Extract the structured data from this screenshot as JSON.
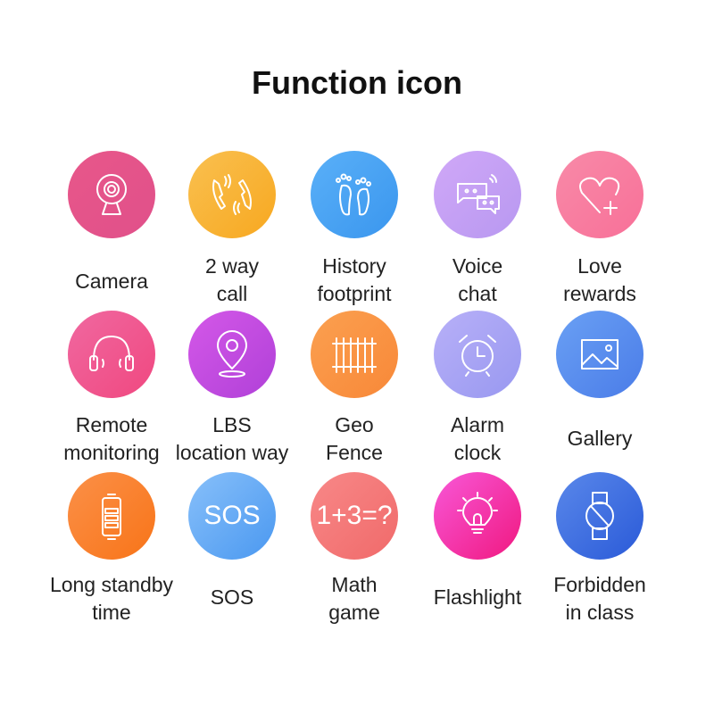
{
  "title": "Function icon",
  "functions": [
    {
      "lines": [
        "Camera"
      ],
      "icon": "webcam-icon",
      "color": "#e8578a",
      "color2": "#e0508a"
    },
    {
      "lines": [
        "2 way",
        "call"
      ],
      "icon": "phone-call-icon",
      "color": "#f9c050",
      "color2": "#f8a820"
    },
    {
      "lines": [
        "History",
        "footprint"
      ],
      "icon": "footprints-icon",
      "color": "#5ab0f8",
      "color2": "#3a96ee"
    },
    {
      "lines": [
        "Voice",
        "chat"
      ],
      "icon": "chat-bubbles-icon",
      "color": "#d0a8f8",
      "color2": "#b898f0"
    },
    {
      "lines": [
        "Love",
        "rewards"
      ],
      "icon": "heart-plus-icon",
      "color": "#f88aa8",
      "color2": "#f87098"
    },
    {
      "lines": [
        "Remote",
        "monitoring"
      ],
      "icon": "headphones-icon",
      "color": "#f068a0",
      "color2": "#f04880"
    },
    {
      "lines": [
        "LBS",
        "location way"
      ],
      "icon": "location-pin-icon",
      "color": "#d458e8",
      "color2": "#b040d8"
    },
    {
      "lines": [
        "Geo",
        "Fence"
      ],
      "icon": "fence-icon",
      "color": "#fba050",
      "color2": "#f88838"
    },
    {
      "lines": [
        "Alarm",
        "clock"
      ],
      "icon": "alarm-clock-icon",
      "color": "#b8b0f8",
      "color2": "#9898f0"
    },
    {
      "lines": [
        "Gallery"
      ],
      "icon": "image-icon",
      "color": "#6aa0f4",
      "color2": "#4a7ce8"
    },
    {
      "lines": [
        "Long standby",
        "time"
      ],
      "icon": "battery-icon",
      "color": "#fb9048",
      "color2": "#f87418"
    },
    {
      "lines": [
        "SOS"
      ],
      "icon": "sos-icon",
      "text": "SOS",
      "color": "#88c0fa",
      "color2": "#4a98f0"
    },
    {
      "lines": [
        "Math",
        "game"
      ],
      "icon": "math-icon",
      "text": "1+3=?",
      "color": "#f88888",
      "color2": "#f06a6a"
    },
    {
      "lines": [
        "Flashlight"
      ],
      "icon": "lightbulb-icon",
      "color": "#f858d8",
      "color2": "#f01880"
    },
    {
      "lines": [
        "Forbidden",
        "in class"
      ],
      "icon": "forbidden-watch-icon",
      "color": "#5a88ea",
      "color2": "#2a5ad8"
    }
  ]
}
